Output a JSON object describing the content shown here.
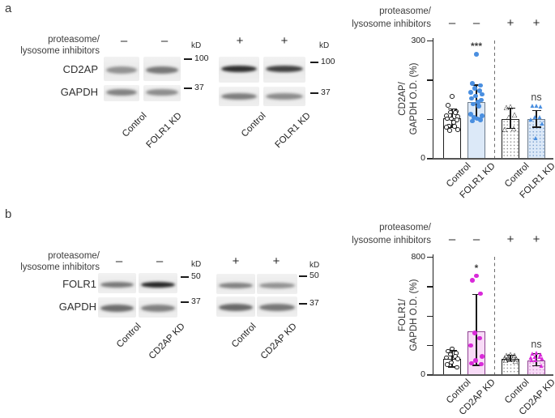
{
  "panels": {
    "a": {
      "label": "a",
      "blot_header": [
        "proteasome/",
        "lysosome inhibitors"
      ],
      "kd_label": "kD",
      "row_labels": [
        "CD2AP",
        "GAPDH"
      ],
      "blots": [
        {
          "signs": [
            "–",
            "–"
          ],
          "markers": [
            "100",
            "37"
          ],
          "lanes": [
            "Control",
            "FOLR1 KD"
          ],
          "band_intensities": [
            [
              0.42,
              0.55
            ],
            [
              0.5,
              0.45
            ]
          ]
        },
        {
          "signs": [
            "+",
            "+"
          ],
          "markers": [
            "100",
            "37"
          ],
          "lanes": [
            "Control",
            "FOLR1 KD"
          ],
          "band_intensities": [
            [
              0.9,
              0.82
            ],
            [
              0.52,
              0.45
            ]
          ]
        }
      ]
    },
    "b": {
      "label": "b",
      "blot_header": [
        "proteasome/",
        "lysosome inhibitors"
      ],
      "kd_label": "kD",
      "row_labels": [
        "FOLR1",
        "GAPDH"
      ],
      "blots": [
        {
          "signs": [
            "–",
            "–"
          ],
          "markers": [
            "50",
            "37"
          ],
          "lanes": [
            "Control",
            "CD2AP KD"
          ],
          "band_intensities": [
            [
              0.55,
              0.95
            ],
            [
              0.6,
              0.5
            ]
          ]
        },
        {
          "signs": [
            "+",
            "+"
          ],
          "markers": [
            "50",
            "37"
          ],
          "lanes": [
            "Control",
            "CD2AP KD"
          ],
          "band_intensities": [
            [
              0.5,
              0.42
            ],
            [
              0.62,
              0.55
            ]
          ]
        }
      ]
    }
  },
  "chart_data": [
    {
      "type": "bar",
      "panel": "a",
      "header": [
        "proteasome/",
        "lysosome inhibitors"
      ],
      "group_signs": [
        "–",
        "–",
        "+",
        "+"
      ],
      "ylabel_lines": [
        "CD2AP/",
        "GAPDH O.D. (%)"
      ],
      "ylim": [
        0,
        300
      ],
      "yticks": [
        0,
        100,
        200,
        300
      ],
      "ytick_labels": [
        "0",
        "",
        "",
        "300"
      ],
      "categories": [
        "Control",
        "FOLR1 KD",
        "Control",
        "FOLR1 KD"
      ],
      "bars": [
        {
          "category": "Control",
          "treatment": "–",
          "value": 101,
          "whisker_low": 79,
          "whisker_high": 125,
          "sig": "",
          "marker": "circle-open",
          "fill": "#ffffff",
          "border": "#1f1f1f",
          "point_color": "#1f1f1f",
          "dotted": false,
          "dot_color": "",
          "points": [
            157,
            135,
            119,
            117,
            116,
            107,
            105,
            100,
            100,
            97,
            91,
            82,
            81,
            79,
            73,
            70
          ]
        },
        {
          "category": "FOLR1 KD",
          "treatment": "–",
          "value": 143,
          "whisker_low": 101,
          "whisker_high": 186,
          "sig": "***",
          "marker": "circle-filled",
          "fill": "#dce9f8",
          "border": "#6f7d8c",
          "point_color": "#4a8fe0",
          "dotted": false,
          "dot_color": "",
          "points": [
            265,
            190,
            185,
            178,
            172,
            168,
            162,
            158,
            152,
            148,
            143,
            138,
            133,
            112,
            108,
            104,
            100,
            97,
            94
          ]
        },
        {
          "category": "Control",
          "treatment": "+",
          "value": 100,
          "whisker_low": 75,
          "whisker_high": 127,
          "sig": "",
          "marker": "triangle-open",
          "fill": "#ffffff",
          "border": "#1f1f1f",
          "point_color": "#1f1f1f",
          "dotted": true,
          "dot_color": "#8f8f8f",
          "points": [
            131,
            129,
            110,
            105,
            76,
            74
          ]
        },
        {
          "category": "FOLR1 KD",
          "treatment": "+",
          "value": 100,
          "whisker_low": 79,
          "whisker_high": 121,
          "sig": "ns",
          "marker": "triangle-filled",
          "fill": "#dce9f8",
          "border": "#6f7d8c",
          "point_color": "#4a8fe0",
          "dotted": true,
          "dot_color": "#7fa3cf",
          "points": [
            134,
            133,
            132,
            105,
            104,
            99,
            88,
            50
          ]
        }
      ]
    },
    {
      "type": "bar",
      "panel": "b",
      "header": [
        "proteasome/",
        "lysosome inhibitors"
      ],
      "group_signs": [
        "–",
        "–",
        "+",
        "+"
      ],
      "ylabel_lines": [
        "FOLR1/",
        "GAPDH O.D. (%)"
      ],
      "ylim": [
        0,
        800
      ],
      "yticks": [
        0,
        200,
        400,
        600,
        800
      ],
      "ytick_labels": [
        "0",
        "",
        "",
        "",
        "800"
      ],
      "categories": [
        "Control",
        "CD2AP KD",
        "Control",
        "CD2AP KD"
      ],
      "bars": [
        {
          "category": "Control",
          "treatment": "–",
          "value": 105,
          "whisker_low": 50,
          "whisker_high": 160,
          "sig": "",
          "marker": "circle-open",
          "fill": "#ffffff",
          "border": "#1f1f1f",
          "point_color": "#1f1f1f",
          "dotted": false,
          "dot_color": "",
          "points": [
            173,
            158,
            143,
            136,
            121,
            112,
            106,
            81,
            66,
            48
          ]
        },
        {
          "category": "CD2AP KD",
          "treatment": "–",
          "value": 292,
          "whisker_low": 60,
          "whisker_high": 545,
          "sig": "*",
          "marker": "circle-filled",
          "fill": "#f8dbf7",
          "border": "#8e4190",
          "point_color": "#d92ad9",
          "dotted": false,
          "dot_color": "",
          "points": [
            670,
            640,
            550,
            280,
            245,
            195,
            120,
            95,
            75,
            70
          ]
        },
        {
          "category": "Control",
          "treatment": "+",
          "value": 105,
          "whisker_low": 90,
          "whisker_high": 130,
          "sig": "",
          "marker": "triangle-open",
          "fill": "#ffffff",
          "border": "#1f1f1f",
          "point_color": "#1f1f1f",
          "dotted": true,
          "dot_color": "#8f8f8f",
          "points": [
            135,
            131,
            127,
            123,
            119,
            114,
            109,
            103,
            97,
            92
          ]
        },
        {
          "category": "CD2AP KD",
          "treatment": "+",
          "value": 95,
          "whisker_low": 57,
          "whisker_high": 140,
          "sig": "ns",
          "marker": "triangle-filled",
          "fill": "#f8dbf7",
          "border": "#8e4190",
          "point_color": "#d92ad9",
          "dotted": true,
          "dot_color": "#d093cf",
          "points": [
            148,
            142,
            137,
            121,
            116,
            111,
            105,
            99,
            94,
            60
          ]
        }
      ]
    }
  ]
}
